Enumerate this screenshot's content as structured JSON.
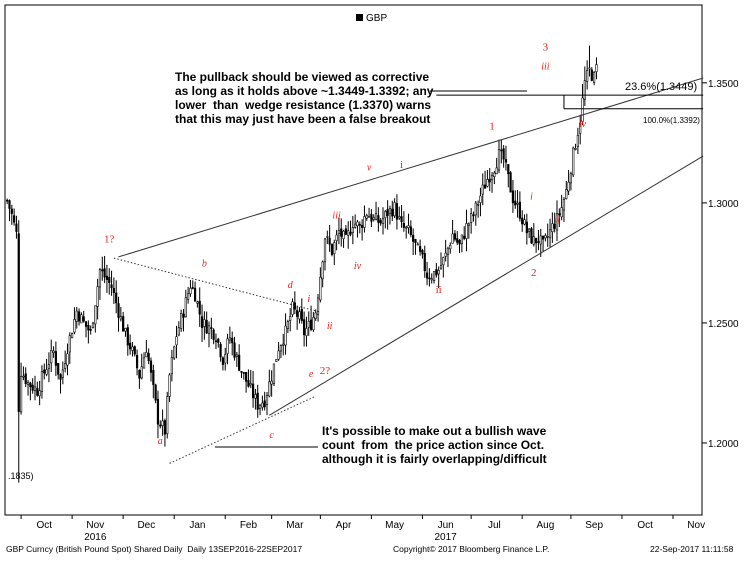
{
  "chart_data": {
    "type": "candlestick",
    "legend": {
      "label": "GBP",
      "placement": "top-center",
      "color": "#000000"
    },
    "y_ticks": [
      {
        "value": 1.2,
        "label": "1.2000"
      },
      {
        "value": 1.25,
        "label": "1.2500"
      },
      {
        "value": 1.3,
        "label": "1.3000"
      },
      {
        "value": 1.35,
        "label": "1.3500"
      }
    ],
    "ylim": [
      1.17,
      1.382
    ],
    "x_months": [
      {
        "label": "Oct",
        "i": 6
      },
      {
        "label": "Nov",
        "i": 28
      },
      {
        "label": "Dec",
        "i": 50
      },
      {
        "label": "Jan",
        "i": 72
      },
      {
        "label": "Feb",
        "i": 94
      },
      {
        "label": "Mar",
        "i": 114
      },
      {
        "label": "Apr",
        "i": 135
      },
      {
        "label": "May",
        "i": 157
      },
      {
        "label": "Jun",
        "i": 179
      },
      {
        "label": "Jul",
        "i": 200
      },
      {
        "label": "Aug",
        "i": 222
      },
      {
        "label": "Sep",
        "i": 243
      },
      {
        "label": "Oct",
        "i": 265
      },
      {
        "label": "Nov",
        "i": 287
      }
    ],
    "x_years": [
      {
        "label": "2016",
        "i": 28
      },
      {
        "label": "2017",
        "i": 179
      }
    ],
    "x_count": 300,
    "price_anchors": [
      [
        0,
        1.301
      ],
      [
        2,
        1.295
      ],
      [
        4,
        1.287
      ],
      [
        5,
        1.215
      ],
      [
        6,
        1.23
      ],
      [
        9,
        1.225
      ],
      [
        13,
        1.222
      ],
      [
        17,
        1.232
      ],
      [
        20,
        1.238
      ],
      [
        23,
        1.226
      ],
      [
        26,
        1.24
      ],
      [
        30,
        1.255
      ],
      [
        33,
        1.25
      ],
      [
        36,
        1.246
      ],
      [
        40,
        1.272
      ],
      [
        43,
        1.268
      ],
      [
        45,
        1.265
      ],
      [
        48,
        1.255
      ],
      [
        51,
        1.245
      ],
      [
        54,
        1.238
      ],
      [
        57,
        1.228
      ],
      [
        60,
        1.24
      ],
      [
        63,
        1.222
      ],
      [
        65,
        1.21
      ],
      [
        68,
        1.205
      ],
      [
        70,
        1.228
      ],
      [
        73,
        1.245
      ],
      [
        76,
        1.255
      ],
      [
        79,
        1.266
      ],
      [
        81,
        1.262
      ],
      [
        84,
        1.25
      ],
      [
        87,
        1.248
      ],
      [
        90,
        1.245
      ],
      [
        93,
        1.235
      ],
      [
        96,
        1.244
      ],
      [
        99,
        1.235
      ],
      [
        102,
        1.228
      ],
      [
        105,
        1.222
      ],
      [
        108,
        1.216
      ],
      [
        111,
        1.218
      ],
      [
        114,
        1.228
      ],
      [
        117,
        1.24
      ],
      [
        120,
        1.246
      ],
      [
        123,
        1.256
      ],
      [
        126,
        1.252
      ],
      [
        128,
        1.246
      ],
      [
        131,
        1.25
      ],
      [
        133,
        1.255
      ],
      [
        135,
        1.27
      ],
      [
        137,
        1.286
      ],
      [
        140,
        1.28
      ],
      [
        143,
        1.288
      ],
      [
        146,
        1.284
      ],
      [
        149,
        1.292
      ],
      [
        152,
        1.29
      ],
      [
        155,
        1.296
      ],
      [
        158,
        1.293
      ],
      [
        161,
        1.292
      ],
      [
        164,
        1.296
      ],
      [
        167,
        1.298
      ],
      [
        170,
        1.29
      ],
      [
        173,
        1.288
      ],
      [
        176,
        1.282
      ],
      [
        179,
        1.276
      ],
      [
        181,
        1.27
      ],
      [
        183,
        1.27
      ],
      [
        186,
        1.272
      ],
      [
        189,
        1.278
      ],
      [
        192,
        1.287
      ],
      [
        195,
        1.282
      ],
      [
        198,
        1.29
      ],
      [
        201,
        1.295
      ],
      [
        204,
        1.303
      ],
      [
        207,
        1.31
      ],
      [
        210,
        1.315
      ],
      [
        212,
        1.32
      ],
      [
        214,
        1.318
      ],
      [
        216,
        1.31
      ],
      [
        218,
        1.302
      ],
      [
        221,
        1.296
      ],
      [
        224,
        1.288
      ],
      [
        227,
        1.284
      ],
      [
        229,
        1.285
      ],
      [
        231,
        1.282
      ],
      [
        233,
        1.286
      ],
      [
        235,
        1.29
      ],
      [
        237,
        1.293
      ],
      [
        239,
        1.298
      ],
      [
        241,
        1.305
      ],
      [
        243,
        1.315
      ],
      [
        245,
        1.325
      ],
      [
        247,
        1.335
      ],
      [
        249,
        1.35
      ],
      [
        251,
        1.355
      ],
      [
        253,
        1.352
      ],
      [
        254,
        1.356
      ]
    ],
    "lows_label": ".1835)",
    "trendlines": [
      {
        "name": "wedge-resistance",
        "from": [
          48,
          1.2775
        ],
        "to": [
          300,
          1.352
        ],
        "style": "solid"
      },
      {
        "name": "wedge-support",
        "from": [
          113,
          1.2115
        ],
        "to": [
          300,
          1.3195
        ],
        "style": "solid"
      },
      {
        "name": "triangle-upper",
        "from": [
          46,
          1.277
        ],
        "to": [
          135,
          1.2545
        ],
        "style": "dotted"
      },
      {
        "name": "triangle-lower",
        "from": [
          70,
          1.1915
        ],
        "to": [
          133,
          1.2195
        ],
        "style": "dotted"
      }
    ],
    "levels": [
      {
        "label": "23.6%(1.3449)",
        "value": 1.3449,
        "from": 185,
        "to": 300
      },
      {
        "label": "100.0%(1.3392)",
        "value": 1.3392,
        "from": 240,
        "to": 300
      }
    ],
    "wave_labels": [
      {
        "text": "1?",
        "i": 44,
        "y": 1.2835,
        "size": 11
      },
      {
        "text": "a",
        "i": 66,
        "y": 1.1995,
        "size": 10,
        "italic": true
      },
      {
        "text": "b",
        "i": 85,
        "y": 1.2735,
        "size": 10,
        "italic": true
      },
      {
        "text": "c",
        "i": 114,
        "y": 1.202,
        "size": 10,
        "italic": true
      },
      {
        "text": "d",
        "i": 122,
        "y": 1.2645,
        "size": 10,
        "italic": true
      },
      {
        "text": "i",
        "i": 130,
        "y": 1.2588,
        "size": 10,
        "italic": true
      },
      {
        "text": "ii",
        "i": 139,
        "y": 1.2475,
        "size": 10,
        "italic": true
      },
      {
        "text": "e",
        "i": 131,
        "y": 1.2275,
        "size": 10,
        "italic": true
      },
      {
        "text": "2?",
        "i": 137,
        "y": 1.2288,
        "size": 11
      },
      {
        "text": "iii",
        "i": 142,
        "y": 1.2935,
        "size": 10,
        "italic": true
      },
      {
        "text": "iv",
        "i": 151,
        "y": 1.2725,
        "size": 10,
        "italic": true
      },
      {
        "text": "v",
        "i": 156,
        "y": 1.3135,
        "size": 10,
        "italic": true
      },
      {
        "text": "i",
        "i": 170,
        "y": 1.3145,
        "size": 11
      },
      {
        "text": "ii",
        "i": 186,
        "y": 1.2625,
        "size": 11
      },
      {
        "text": "1",
        "i": 209,
        "y": 1.3305,
        "size": 11
      },
      {
        "text": "i",
        "i": 226,
        "y": 1.3015,
        "size": 10,
        "italic": true
      },
      {
        "text": "ii",
        "i": 237,
        "y": 1.2915,
        "size": 10,
        "italic": true
      },
      {
        "text": "2",
        "i": 227,
        "y": 1.2695,
        "size": 11
      },
      {
        "text": "3",
        "i": 232,
        "y": 1.3635,
        "size": 11
      },
      {
        "text": "iii",
        "i": 232,
        "y": 1.3555,
        "size": 10,
        "italic": true
      },
      {
        "text": "iv",
        "i": 248,
        "y": 1.3315,
        "size": 10,
        "italic": true
      }
    ],
    "annotations": [
      "The pullback should be viewed as corrective\nas long as it holds above ~1.3449-1.3392; any\nlower  than  wedge resistance (1.3370) warns\nthat this may just have been a false breakout",
      "It's possible to make out a bullish wave\ncount  from  the price action since Oct.\nalthough it is fairly overlapping/difficult"
    ],
    "colors": {
      "candle": "#000000",
      "wave": "#e8221c",
      "axis": "#000000"
    }
  },
  "footer": {
    "left": "GBP Curncy (British Pound Spot) Shared Daily  Daily 13SEP2016-22SEP2017",
    "center": "Copyright© 2017 Bloomberg Finance L.P.",
    "right": "22-Sep-2017 11:11:58"
  }
}
